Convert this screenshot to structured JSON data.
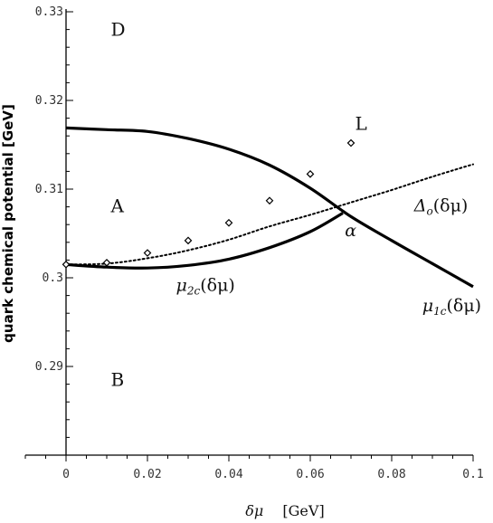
{
  "chart_data": {
    "type": "line",
    "title": "",
    "xlabel": "δμ",
    "xlabel_unit": "[GeV]",
    "ylabel": "quark chemical potential [GeV]",
    "xlim": [
      -0.01,
      0.1
    ],
    "ylim": [
      0.28,
      0.33
    ],
    "x_ticks": [
      0,
      0.02,
      0.04,
      0.06,
      0.08,
      0.1
    ],
    "x_tick_labels": [
      "0",
      "0.02",
      "0.04",
      "0.06",
      "0.08",
      "0.1"
    ],
    "y_ticks": [
      0.29,
      0.3,
      0.31,
      0.32,
      0.33
    ],
    "y_tick_labels": [
      "0.29",
      "0.3",
      "0.31",
      "0.32",
      "0.33"
    ],
    "grid": false,
    "series": [
      {
        "name": "μ1c(δμ)",
        "style": "solid-thick",
        "x": [
          0,
          0.01,
          0.02,
          0.03,
          0.04,
          0.05,
          0.06,
          0.07,
          0.08,
          0.09,
          0.1
        ],
        "y": [
          0.3169,
          0.3167,
          0.3165,
          0.3157,
          0.3145,
          0.3127,
          0.3101,
          0.3069,
          0.3042,
          0.3016,
          0.299
        ]
      },
      {
        "name": "μ2c(δμ)",
        "style": "solid-thick",
        "x": [
          0,
          0.01,
          0.02,
          0.03,
          0.04,
          0.05,
          0.06,
          0.068
        ],
        "y": [
          0.3015,
          0.3012,
          0.3011,
          0.3014,
          0.3021,
          0.3034,
          0.3052,
          0.3073
        ]
      },
      {
        "name": "Δo(δμ)",
        "style": "dotted",
        "x": [
          0,
          0.01,
          0.02,
          0.03,
          0.04,
          0.05,
          0.06,
          0.07,
          0.08,
          0.09,
          0.1
        ],
        "y": [
          0.3015,
          0.3016,
          0.3022,
          0.3031,
          0.3043,
          0.3058,
          0.3071,
          0.3085,
          0.3099,
          0.3114,
          0.3128
        ]
      },
      {
        "name": "L",
        "style": "diamond-markers",
        "x": [
          0,
          0.01,
          0.02,
          0.03,
          0.04,
          0.05,
          0.06,
          0.07
        ],
        "y": [
          0.3015,
          0.3017,
          0.3028,
          0.3042,
          0.3062,
          0.3087,
          0.3117,
          0.3152
        ]
      }
    ],
    "curve_labels": {
      "mu1c": {
        "main": "μ",
        "sub": "1c",
        "tail": "(δμ)",
        "x": 0.0875,
        "y": 0.2962
      },
      "mu2c": {
        "main": "μ",
        "sub": "2c",
        "tail": "(δμ)",
        "x": 0.027,
        "y": 0.2985
      },
      "delta": {
        "main": "Δ",
        "sub": "o",
        "tail": "(δμ)",
        "x": 0.0855,
        "y": 0.3075
      },
      "L": {
        "text": "L",
        "x": 0.071,
        "y": 0.3167
      },
      "alpha": {
        "text": "α",
        "x": 0.0685,
        "y": 0.3047
      }
    },
    "regions": [
      {
        "label": "D",
        "x": 0.011,
        "y": 0.3273
      },
      {
        "label": "A",
        "x": 0.011,
        "y": 0.3074
      },
      {
        "label": "B",
        "x": 0.011,
        "y": 0.2878
      }
    ]
  }
}
